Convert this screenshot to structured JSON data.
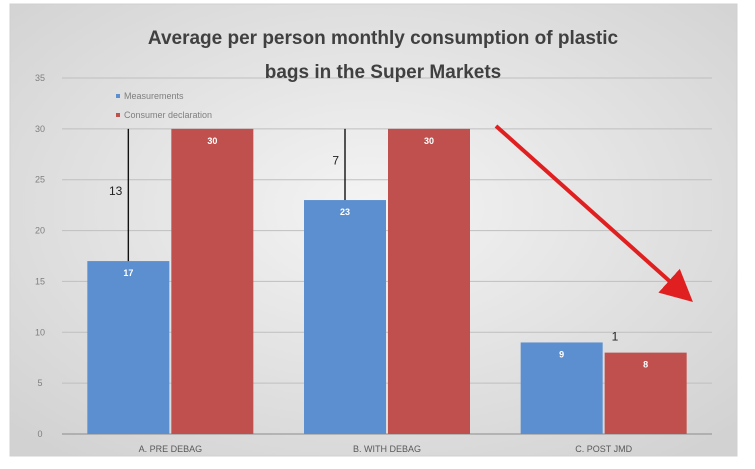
{
  "chart_data": {
    "type": "bar",
    "title": "Average per person monthly consumption of plastic bags in the Super Markets",
    "title_lines": [
      "Average per person monthly consumption of plastic",
      "bags in the Super Markets"
    ],
    "categories": [
      "A. PRE DEBAG",
      "B. WITH DEBAG",
      "C. POST JMD"
    ],
    "series": [
      {
        "name": "Measurements",
        "values": [
          17,
          23,
          9
        ],
        "color": "#5b8fcf"
      },
      {
        "name": "Consumer declaration",
        "values": [
          30,
          30,
          8
        ],
        "color": "#c0504d"
      }
    ],
    "data_labels": [
      [
        "17",
        "23",
        "9"
      ],
      [
        "30",
        "30",
        "8"
      ]
    ],
    "annotations": [
      {
        "category": "A. PRE DEBAG",
        "text": "13",
        "from": 17,
        "to": 30
      },
      {
        "category": "B. WITH DEBAG",
        "text": "7",
        "from": 23,
        "to": 30
      },
      {
        "category": "C. POST JMD",
        "text": "1",
        "from": 8,
        "to": 9
      }
    ],
    "ylim": [
      0,
      35
    ],
    "yticks": [
      "0",
      "5",
      "10",
      "15",
      "20",
      "25",
      "30",
      "35"
    ],
    "grid": true,
    "legend_position": "top-left",
    "trend_arrow": {
      "color": "#e02020",
      "direction": "down"
    },
    "background_color": "#dcdcdc"
  }
}
